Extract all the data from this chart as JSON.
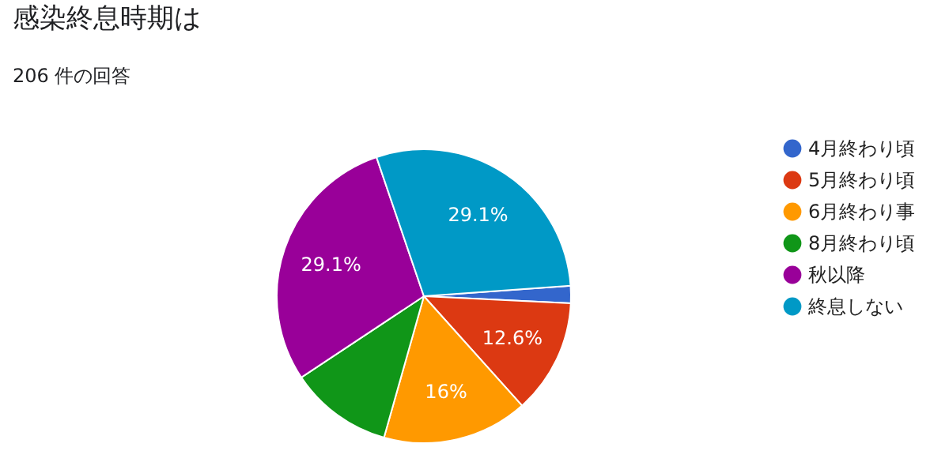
{
  "chart_data": {
    "type": "pie",
    "title": "感染終息時期は",
    "subtitle": "206 件の回答",
    "categories": [
      "4月終わり頃",
      "5月終わり頃",
      "6月終わり事",
      "8月終わり頃",
      "秋以降",
      "終息しない"
    ],
    "values": [
      1.9,
      12.6,
      16,
      11.3,
      29.1,
      29.1
    ],
    "colors": [
      "#3366cc",
      "#dc3912",
      "#ff9900",
      "#109618",
      "#990099",
      "#0099c6"
    ],
    "value_labels": [
      null,
      "12.6%",
      "16%",
      null,
      "29.1%",
      "29.1%"
    ],
    "legend": "right"
  }
}
